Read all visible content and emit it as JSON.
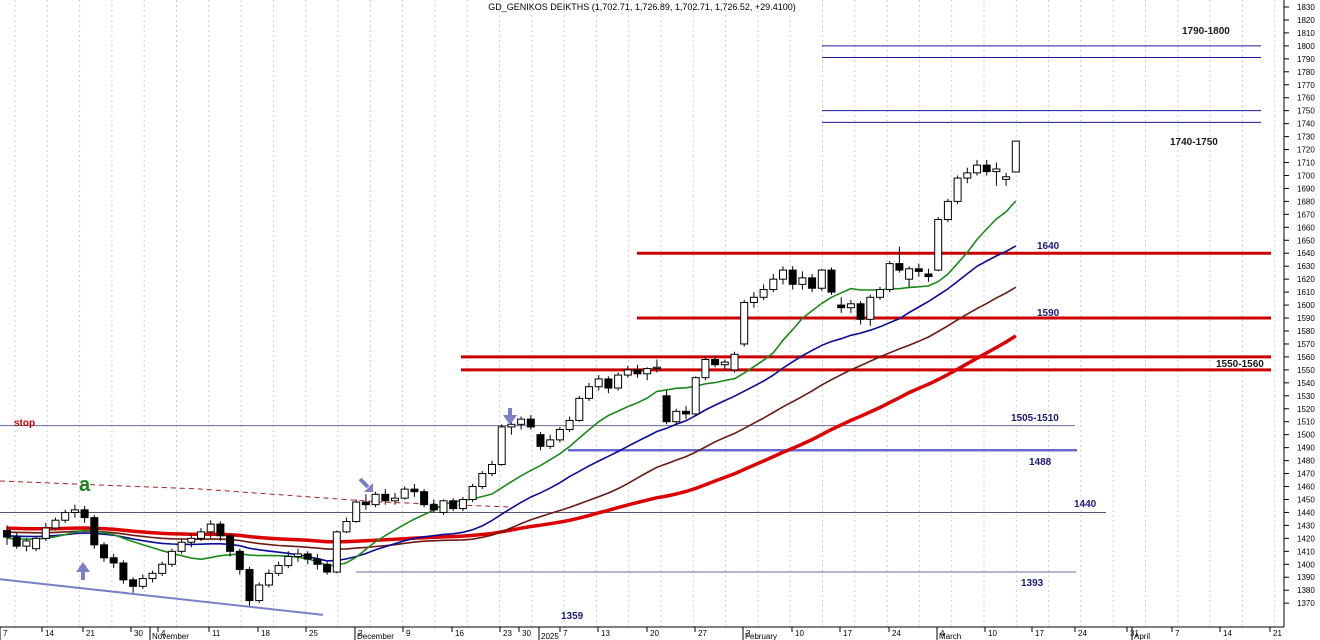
{
  "chart_data": {
    "type": "candlestick",
    "title": "GD_GENIKOS DEIKTHS (1,702.71, 1,726.89, 1,702.71, 1,726.52, +29.4100)",
    "ylim": [
      1360,
      1835
    ],
    "y_ticks": [
      1370,
      1380,
      1390,
      1400,
      1410,
      1420,
      1430,
      1440,
      1450,
      1460,
      1470,
      1480,
      1490,
      1500,
      1510,
      1520,
      1530,
      1540,
      1550,
      1560,
      1570,
      1580,
      1590,
      1600,
      1610,
      1620,
      1630,
      1640,
      1650,
      1660,
      1670,
      1680,
      1690,
      1700,
      1710,
      1720,
      1730,
      1740,
      1750,
      1760,
      1770,
      1780,
      1790,
      1800,
      1810,
      1820,
      1830
    ],
    "x_day_labels": [
      "7",
      "14",
      "21",
      "30",
      "4",
      "11",
      "18",
      "25",
      "2",
      "9",
      "16",
      "23",
      "30",
      "7",
      "13",
      "20",
      "27",
      "3",
      "10",
      "17",
      "24",
      "4",
      "10",
      "17",
      "24",
      "31",
      "7",
      "14",
      "21"
    ],
    "x_month_labels": [
      "November",
      "December",
      "2025",
      "February",
      "March",
      "April"
    ],
    "candles": [
      {
        "o": 1426,
        "h": 1430,
        "l": 1415,
        "c": 1421
      },
      {
        "o": 1421,
        "h": 1424,
        "l": 1412,
        "c": 1414
      },
      {
        "o": 1414,
        "h": 1420,
        "l": 1410,
        "c": 1418
      },
      {
        "o": 1412,
        "h": 1422,
        "l": 1410,
        "c": 1420
      },
      {
        "o": 1420,
        "h": 1432,
        "l": 1418,
        "c": 1428
      },
      {
        "o": 1428,
        "h": 1436,
        "l": 1426,
        "c": 1434
      },
      {
        "o": 1434,
        "h": 1442,
        "l": 1432,
        "c": 1440
      },
      {
        "o": 1440,
        "h": 1446,
        "l": 1436,
        "c": 1442
      },
      {
        "o": 1442,
        "h": 1445,
        "l": 1432,
        "c": 1436
      },
      {
        "o": 1436,
        "h": 1438,
        "l": 1412,
        "c": 1415
      },
      {
        "o": 1415,
        "h": 1417,
        "l": 1402,
        "c": 1405
      },
      {
        "o": 1405,
        "h": 1408,
        "l": 1397,
        "c": 1401
      },
      {
        "o": 1401,
        "h": 1403,
        "l": 1385,
        "c": 1388
      },
      {
        "o": 1388,
        "h": 1390,
        "l": 1378,
        "c": 1383
      },
      {
        "o": 1383,
        "h": 1392,
        "l": 1381,
        "c": 1389
      },
      {
        "o": 1389,
        "h": 1395,
        "l": 1386,
        "c": 1393
      },
      {
        "o": 1393,
        "h": 1402,
        "l": 1391,
        "c": 1400
      },
      {
        "o": 1400,
        "h": 1412,
        "l": 1398,
        "c": 1410
      },
      {
        "o": 1410,
        "h": 1420,
        "l": 1408,
        "c": 1417
      },
      {
        "o": 1417,
        "h": 1424,
        "l": 1413,
        "c": 1420
      },
      {
        "o": 1420,
        "h": 1428,
        "l": 1418,
        "c": 1425
      },
      {
        "o": 1425,
        "h": 1434,
        "l": 1420,
        "c": 1431
      },
      {
        "o": 1431,
        "h": 1433,
        "l": 1418,
        "c": 1422
      },
      {
        "o": 1422,
        "h": 1424,
        "l": 1406,
        "c": 1410
      },
      {
        "o": 1410,
        "h": 1412,
        "l": 1392,
        "c": 1396
      },
      {
        "o": 1396,
        "h": 1398,
        "l": 1368,
        "c": 1372
      },
      {
        "o": 1372,
        "h": 1386,
        "l": 1370,
        "c": 1384
      },
      {
        "o": 1384,
        "h": 1396,
        "l": 1382,
        "c": 1393
      },
      {
        "o": 1393,
        "h": 1402,
        "l": 1391,
        "c": 1399
      },
      {
        "o": 1399,
        "h": 1410,
        "l": 1397,
        "c": 1406
      },
      {
        "o": 1406,
        "h": 1412,
        "l": 1402,
        "c": 1408
      },
      {
        "o": 1408,
        "h": 1410,
        "l": 1400,
        "c": 1404
      },
      {
        "o": 1404,
        "h": 1408,
        "l": 1396,
        "c": 1400
      },
      {
        "o": 1400,
        "h": 1402,
        "l": 1392,
        "c": 1394
      },
      {
        "o": 1394,
        "h": 1426,
        "l": 1393,
        "c": 1425
      },
      {
        "o": 1425,
        "h": 1436,
        "l": 1424,
        "c": 1433
      },
      {
        "o": 1433,
        "h": 1450,
        "l": 1432,
        "c": 1448
      },
      {
        "o": 1448,
        "h": 1454,
        "l": 1442,
        "c": 1446
      },
      {
        "o": 1446,
        "h": 1456,
        "l": 1444,
        "c": 1454
      },
      {
        "o": 1454,
        "h": 1458,
        "l": 1446,
        "c": 1449
      },
      {
        "o": 1449,
        "h": 1455,
        "l": 1446,
        "c": 1451
      },
      {
        "o": 1451,
        "h": 1460,
        "l": 1450,
        "c": 1458
      },
      {
        "o": 1458,
        "h": 1462,
        "l": 1452,
        "c": 1456
      },
      {
        "o": 1456,
        "h": 1458,
        "l": 1444,
        "c": 1446
      },
      {
        "o": 1446,
        "h": 1450,
        "l": 1440,
        "c": 1442
      },
      {
        "o": 1440,
        "h": 1450,
        "l": 1438,
        "c": 1449
      },
      {
        "o": 1449,
        "h": 1451,
        "l": 1441,
        "c": 1443
      },
      {
        "o": 1443,
        "h": 1452,
        "l": 1441,
        "c": 1450
      },
      {
        "o": 1450,
        "h": 1462,
        "l": 1448,
        "c": 1460
      },
      {
        "o": 1460,
        "h": 1472,
        "l": 1458,
        "c": 1470
      },
      {
        "o": 1470,
        "h": 1480,
        "l": 1468,
        "c": 1477
      },
      {
        "o": 1477,
        "h": 1508,
        "l": 1476,
        "c": 1506
      },
      {
        "o": 1506,
        "h": 1512,
        "l": 1500,
        "c": 1508
      },
      {
        "o": 1508,
        "h": 1514,
        "l": 1504,
        "c": 1512
      },
      {
        "o": 1512,
        "h": 1515,
        "l": 1504,
        "c": 1506
      },
      {
        "o": 1500,
        "h": 1502,
        "l": 1488,
        "c": 1491
      },
      {
        "o": 1491,
        "h": 1500,
        "l": 1489,
        "c": 1496
      },
      {
        "o": 1496,
        "h": 1506,
        "l": 1494,
        "c": 1504
      },
      {
        "o": 1504,
        "h": 1514,
        "l": 1502,
        "c": 1511
      },
      {
        "o": 1511,
        "h": 1530,
        "l": 1510,
        "c": 1528
      },
      {
        "o": 1528,
        "h": 1540,
        "l": 1526,
        "c": 1537
      },
      {
        "o": 1537,
        "h": 1546,
        "l": 1534,
        "c": 1543
      },
      {
        "o": 1543,
        "h": 1545,
        "l": 1532,
        "c": 1536
      },
      {
        "o": 1536,
        "h": 1548,
        "l": 1534,
        "c": 1546
      },
      {
        "o": 1546,
        "h": 1553,
        "l": 1544,
        "c": 1550
      },
      {
        "o": 1550,
        "h": 1554,
        "l": 1544,
        "c": 1547
      },
      {
        "o": 1547,
        "h": 1552,
        "l": 1542,
        "c": 1551
      },
      {
        "o": 1551,
        "h": 1558,
        "l": 1548,
        "c": 1552
      },
      {
        "o": 1530,
        "h": 1534,
        "l": 1508,
        "c": 1510
      },
      {
        "o": 1510,
        "h": 1520,
        "l": 1508,
        "c": 1518
      },
      {
        "o": 1518,
        "h": 1522,
        "l": 1512,
        "c": 1516
      },
      {
        "o": 1516,
        "h": 1545,
        "l": 1515,
        "c": 1544
      },
      {
        "o": 1544,
        "h": 1560,
        "l": 1542,
        "c": 1558
      },
      {
        "o": 1558,
        "h": 1561,
        "l": 1552,
        "c": 1554
      },
      {
        "o": 1554,
        "h": 1558,
        "l": 1550,
        "c": 1556
      },
      {
        "o": 1550,
        "h": 1564,
        "l": 1548,
        "c": 1562
      },
      {
        "o": 1570,
        "h": 1604,
        "l": 1568,
        "c": 1602
      },
      {
        "o": 1602,
        "h": 1610,
        "l": 1598,
        "c": 1606
      },
      {
        "o": 1606,
        "h": 1616,
        "l": 1604,
        "c": 1612
      },
      {
        "o": 1612,
        "h": 1624,
        "l": 1610,
        "c": 1620
      },
      {
        "o": 1620,
        "h": 1630,
        "l": 1616,
        "c": 1627
      },
      {
        "o": 1627,
        "h": 1630,
        "l": 1612,
        "c": 1616
      },
      {
        "o": 1616,
        "h": 1626,
        "l": 1612,
        "c": 1621
      },
      {
        "o": 1621,
        "h": 1624,
        "l": 1610,
        "c": 1613
      },
      {
        "o": 1613,
        "h": 1628,
        "l": 1611,
        "c": 1627
      },
      {
        "o": 1627,
        "h": 1629,
        "l": 1608,
        "c": 1610
      },
      {
        "o": 1600,
        "h": 1606,
        "l": 1594,
        "c": 1598
      },
      {
        "o": 1598,
        "h": 1604,
        "l": 1594,
        "c": 1601
      },
      {
        "o": 1601,
        "h": 1603,
        "l": 1585,
        "c": 1589
      },
      {
        "o": 1589,
        "h": 1608,
        "l": 1584,
        "c": 1606
      },
      {
        "o": 1606,
        "h": 1614,
        "l": 1604,
        "c": 1612
      },
      {
        "o": 1612,
        "h": 1634,
        "l": 1610,
        "c": 1632
      },
      {
        "o": 1632,
        "h": 1645,
        "l": 1625,
        "c": 1627
      },
      {
        "o": 1620,
        "h": 1630,
        "l": 1614,
        "c": 1628
      },
      {
        "o": 1628,
        "h": 1632,
        "l": 1622,
        "c": 1626
      },
      {
        "o": 1624,
        "h": 1628,
        "l": 1618,
        "c": 1622
      },
      {
        "o": 1627,
        "h": 1668,
        "l": 1626,
        "c": 1666
      },
      {
        "o": 1666,
        "h": 1682,
        "l": 1664,
        "c": 1680
      },
      {
        "o": 1680,
        "h": 1700,
        "l": 1678,
        "c": 1698
      },
      {
        "o": 1698,
        "h": 1706,
        "l": 1694,
        "c": 1702
      },
      {
        "o": 1702,
        "h": 1712,
        "l": 1700,
        "c": 1708
      },
      {
        "o": 1708,
        "h": 1712,
        "l": 1700,
        "c": 1703
      },
      {
        "o": 1703,
        "h": 1710,
        "l": 1692,
        "c": 1705
      },
      {
        "o": 1697,
        "h": 1702,
        "l": 1692,
        "c": 1699
      },
      {
        "o": 1702.71,
        "h": 1726.89,
        "l": 1702.71,
        "c": 1726.52
      }
    ],
    "horizontal_levels": [
      {
        "value": 1800,
        "color": "#1a1aa0"
      },
      {
        "value": 1791,
        "color": "#1a1aa0"
      },
      {
        "value": 1750,
        "color": "#1a1aa0"
      },
      {
        "value": 1741,
        "color": "#1a1aa0"
      },
      {
        "value": 1640,
        "color": "#cc0000"
      },
      {
        "value": 1590,
        "color": "#cc0000"
      },
      {
        "value": 1560,
        "color": "#cc0000"
      },
      {
        "value": 1550,
        "color": "#cc0000"
      },
      {
        "value": 1507,
        "color": "#6a6aa0"
      },
      {
        "value": 1488,
        "color": "#6a6ad0"
      },
      {
        "value": 1440,
        "color": "#555577"
      },
      {
        "value": 1394,
        "color": "#6a6aa0"
      }
    ],
    "annotations": {
      "l_1790": "1790-1800",
      "l_1740": "1740-1750",
      "l_1640": "1640",
      "l_1590": "1590",
      "l_1550": "1550-1560",
      "l_1505": "1505-1510",
      "l_1488": "1488",
      "l_1440": "1440",
      "l_1393": "1393",
      "l_1359": "1359",
      "stop": "stop",
      "wave": "a"
    },
    "colors": {
      "green_ma": "#1a8a1a",
      "blue_ma": "#0a0a9a",
      "brown_ma": "#6a1a10",
      "red_ma": "#dd0000",
      "annotation_blue": "#1a1a7a",
      "annotation_red": "#cc0000",
      "annotation_green": "#1a8a1a",
      "arrow": "#7a80c8"
    }
  }
}
